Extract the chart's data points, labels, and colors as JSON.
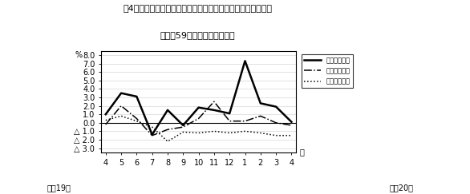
{
  "title_line1": "第4図　　賃金、労働時間、常用雇用指数対前年同月比の推移",
  "title_line2": "（規模59以上　調査産業計）",
  "xlabel_months": [
    "4",
    "5",
    "6",
    "7",
    "8",
    "9",
    "10",
    "11",
    "12",
    "1",
    "2",
    "3",
    "4"
  ],
  "ylabel": "%",
  "ylim": [
    -3.5,
    8.5
  ],
  "ylim_display": [
    -3.0,
    8.0
  ],
  "yticks": [
    8.0,
    7.0,
    6.0,
    5.0,
    4.0,
    3.0,
    2.0,
    1.0,
    0.0,
    -1.0,
    -2.0,
    -3.0
  ],
  "ytick_labels": [
    "8.0",
    "7.0",
    "6.0",
    "5.0",
    "4.0",
    "3.0",
    "2.0",
    "1.0",
    "0.0",
    "△ 1.0",
    "△ 2.0",
    "△ 3.0"
  ],
  "x_label_bottom_left": "平成19年",
  "x_label_bottom_right": "平成20年",
  "month_label": "月",
  "line1_label": "現金給与総額",
  "line2_label": "総実労働時間",
  "line3_label": "常用雇用指数",
  "line1_data": [
    1.0,
    3.5,
    3.1,
    -1.4,
    1.5,
    -0.3,
    1.8,
    1.5,
    1.1,
    7.3,
    2.3,
    1.9,
    0.1
  ],
  "line2_data": [
    -0.2,
    2.0,
    0.5,
    -1.5,
    -0.8,
    -0.5,
    0.5,
    2.5,
    0.2,
    0.2,
    0.8,
    0.0,
    -0.3
  ],
  "line3_data": [
    0.3,
    0.8,
    0.2,
    -0.5,
    -2.2,
    -1.1,
    -1.2,
    -1.0,
    -1.2,
    -1.0,
    -1.2,
    -1.5,
    -1.5
  ],
  "bg_color": "#ffffff",
  "line1_color": "#000000",
  "line2_color": "#000000",
  "line3_color": "#000000",
  "grid_color": "#cccccc"
}
